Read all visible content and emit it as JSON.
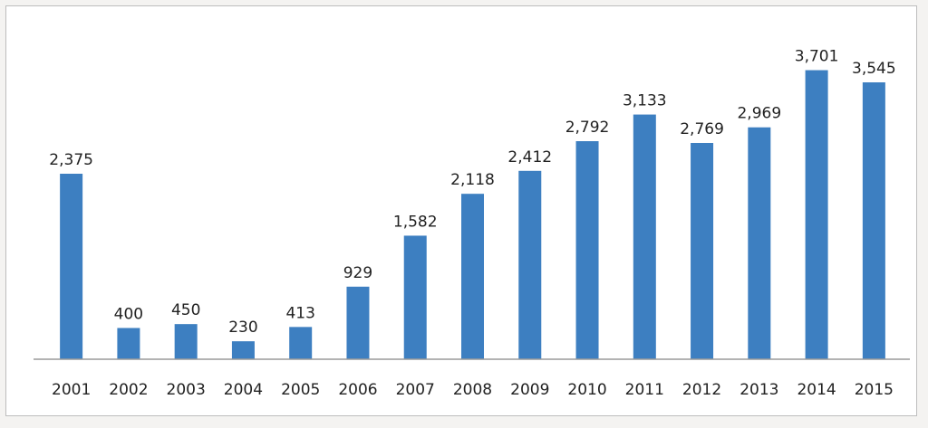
{
  "chart_data": {
    "type": "bar",
    "categories": [
      "2001",
      "2002",
      "2003",
      "2004",
      "2005",
      "2006",
      "2007",
      "2008",
      "2009",
      "2010",
      "2011",
      "2012",
      "2013",
      "2014",
      "2015"
    ],
    "values": [
      2375,
      400,
      450,
      230,
      413,
      929,
      1582,
      2118,
      2412,
      2792,
      3133,
      2769,
      2969,
      3701,
      3545
    ],
    "value_labels": [
      "2,375",
      "400",
      "450",
      "230",
      "413",
      "929",
      "1,582",
      "2,118",
      "2,412",
      "2,792",
      "3,133",
      "2,769",
      "2,969",
      "3,701",
      "3,545"
    ],
    "title": "",
    "xlabel": "",
    "ylabel": "",
    "ylim": [
      0,
      3800
    ],
    "grid": false,
    "legend": "none",
    "bar_color": "#3d7fc1"
  }
}
